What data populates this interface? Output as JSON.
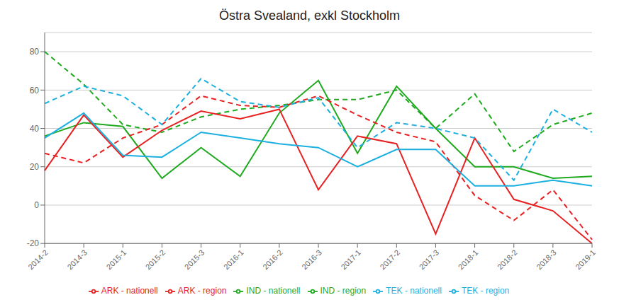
{
  "chart_data": {
    "type": "line",
    "title": "Östra Svealand, exkl Stockholm",
    "categories": [
      "2014-2",
      "2014-3",
      "2015-1",
      "2015-2",
      "2015-3",
      "2016-1",
      "2016-2",
      "2016-3",
      "2017-1",
      "2017-2",
      "2017-3",
      "2018-1",
      "2018-2",
      "2018-3",
      "2019-1"
    ],
    "series": [
      {
        "name": "IND - region",
        "color": "#1faa1f",
        "line_style": "solid",
        "values": [
          36,
          43,
          41,
          14,
          30,
          15,
          48,
          65,
          27,
          62,
          40,
          20,
          20,
          14,
          15
        ]
      },
      {
        "name": "IND - nationell",
        "color": "#1faa1f",
        "line_style": "dashed",
        "values": [
          80,
          63,
          42,
          38,
          46,
          50,
          52,
          55,
          55,
          60,
          40,
          58,
          28,
          42,
          48
        ]
      },
      {
        "name": "ARK - region",
        "color": "#e82222",
        "line_style": "solid",
        "values": [
          18,
          47,
          25,
          39,
          49,
          45,
          50,
          8,
          36,
          32,
          -15,
          35,
          3,
          -3,
          -20
        ]
      },
      {
        "name": "ARK - nationell",
        "color": "#e82222",
        "line_style": "dashed",
        "values": [
          27,
          22,
          35,
          42,
          57,
          52,
          51,
          57,
          47,
          38,
          33,
          5,
          -8,
          8,
          -18
        ]
      },
      {
        "name": "TEK - region",
        "color": "#1cb0e0",
        "line_style": "solid",
        "values": [
          35,
          48,
          26,
          25,
          38,
          35,
          32,
          30,
          20,
          29,
          29,
          10,
          10,
          13,
          10
        ]
      },
      {
        "name": "TEK - nationell",
        "color": "#1cb0e0",
        "line_style": "dashed",
        "values": [
          53,
          62,
          57,
          42,
          66,
          54,
          51,
          56,
          30,
          43,
          40,
          35,
          13,
          50,
          38
        ]
      }
    ],
    "ylim": [
      -20,
      90
    ],
    "yticks": [
      -20,
      0,
      20,
      40,
      60,
      80
    ],
    "grid": true,
    "legend": "bottom"
  }
}
